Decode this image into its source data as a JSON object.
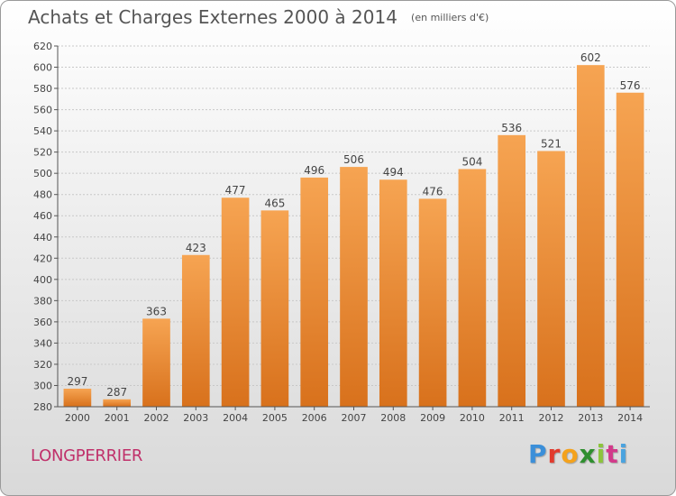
{
  "title": "Achats et Charges Externes 2000 à 2014",
  "subtitle": "(en milliers d'€)",
  "commune": "LONGPERRIER",
  "brand": "Proxiti",
  "colors": {
    "bar_light": "#f6a452",
    "bar_dark": "#d8711c",
    "grid": "#c8c8c8",
    "axis": "#555555",
    "commune_text": "#c0306a"
  },
  "chart_data": {
    "type": "bar",
    "categories": [
      "2000",
      "2001",
      "2002",
      "2003",
      "2004",
      "2005",
      "2006",
      "2007",
      "2008",
      "2009",
      "2010",
      "2011",
      "2012",
      "2013",
      "2014"
    ],
    "values": [
      297,
      287,
      363,
      423,
      477,
      465,
      496,
      506,
      494,
      476,
      504,
      536,
      521,
      602,
      576
    ],
    "ylim": [
      280,
      620
    ],
    "yticks": [
      280,
      300,
      320,
      340,
      360,
      380,
      400,
      420,
      440,
      460,
      480,
      500,
      520,
      540,
      560,
      580,
      600,
      620
    ],
    "grid": true,
    "data_labels": true
  }
}
